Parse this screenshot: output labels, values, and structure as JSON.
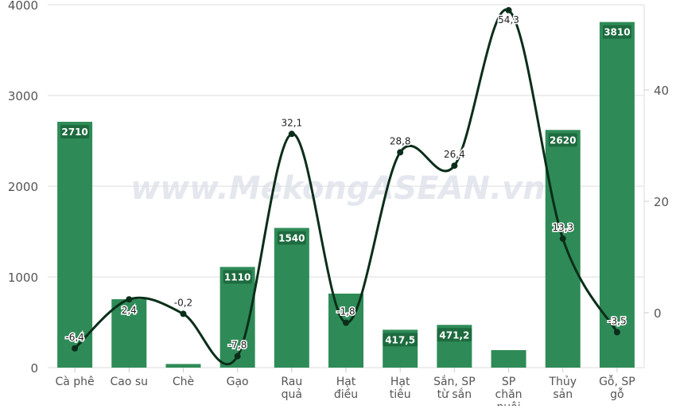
{
  "chart_data": {
    "type": "bar+line",
    "watermark": "www.MekongASEAN.vn",
    "categories": [
      [
        "Cà phê"
      ],
      [
        "Cao su"
      ],
      [
        "Chè"
      ],
      [
        "Gạo"
      ],
      [
        "Rau",
        "quả"
      ],
      [
        "Hạt",
        "điều"
      ],
      [
        "Hạt",
        "tiêu"
      ],
      [
        "Sắn, SP",
        "từ sắn"
      ],
      [
        "SP",
        "chăn",
        "nuôi"
      ],
      [
        "Thủy",
        "sản"
      ],
      [
        "Gỗ, SP",
        "gỗ"
      ]
    ],
    "series": [
      {
        "type": "bar",
        "axis": "left",
        "color": "#2e8b57",
        "values": [
          2710,
          754,
          40,
          1110,
          1540,
          816,
          417.5,
          471.2,
          193,
          2620,
          3810
        ],
        "labels": [
          "2710",
          "",
          "",
          "1110",
          "1540",
          "",
          "417,5",
          "471,2",
          "",
          "2620",
          "3810"
        ]
      },
      {
        "type": "line",
        "axis": "right",
        "color": "#0b2e1a",
        "values": [
          -6.4,
          2.4,
          -0.2,
          -7.8,
          32.1,
          -1.8,
          28.8,
          26.4,
          54.3,
          13.3,
          -3.5
        ],
        "labels": [
          "-6,4",
          "2,4",
          "-0,2",
          "-7,8",
          "32,1",
          "-1,8",
          "28,8",
          "26,4",
          "54,3",
          "13,3",
          "-3,5"
        ]
      }
    ],
    "left_axis": {
      "ylim": [
        0,
        4000
      ],
      "ticks": [
        "0",
        "1000",
        "2000",
        "3000",
        "4000"
      ]
    },
    "right_axis": {
      "ylim": [
        -10,
        55
      ],
      "ticks": [
        "0",
        "20",
        "40"
      ]
    },
    "grid": true
  }
}
